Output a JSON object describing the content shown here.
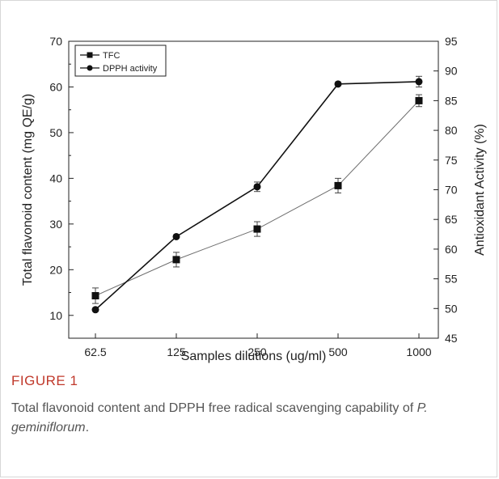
{
  "figure": {
    "label": "FIGURE 1",
    "caption_text": "Total flavonoid content and DPPH free radical scavenging capability of ",
    "caption_species": "P. geminiflorum",
    "caption_end": "."
  },
  "chart_data": {
    "type": "line",
    "xlabel": "Samples dilutions (ug/ml)",
    "ylabel": "Total flavonoid content (mg QE/g)",
    "y2label": "Antioxidant Activity (%)",
    "categories": [
      "62.5",
      "125",
      "250",
      "500",
      "1000"
    ],
    "ylim": [
      5,
      70
    ],
    "y_ticks": [
      10,
      20,
      30,
      40,
      50,
      60,
      70
    ],
    "y2lim": [
      45,
      95
    ],
    "y2_ticks": [
      45,
      50,
      55,
      60,
      65,
      70,
      75,
      80,
      85,
      90,
      95
    ],
    "legend_position": "top-left",
    "series": [
      {
        "name": "TFC",
        "axis": "left",
        "marker": "square",
        "color": "#6e6e6e",
        "values": [
          14.3,
          22.2,
          28.9,
          38.4,
          57.0
        ],
        "errors": [
          1.7,
          1.6,
          1.6,
          1.6,
          1.3
        ]
      },
      {
        "name": "DPPH activity",
        "axis": "right",
        "marker": "circle",
        "color": "#111111",
        "values": [
          49.8,
          62.1,
          70.5,
          87.8,
          88.2
        ],
        "errors": [
          0.0,
          0.0,
          0.8,
          0.0,
          0.9
        ]
      }
    ]
  }
}
